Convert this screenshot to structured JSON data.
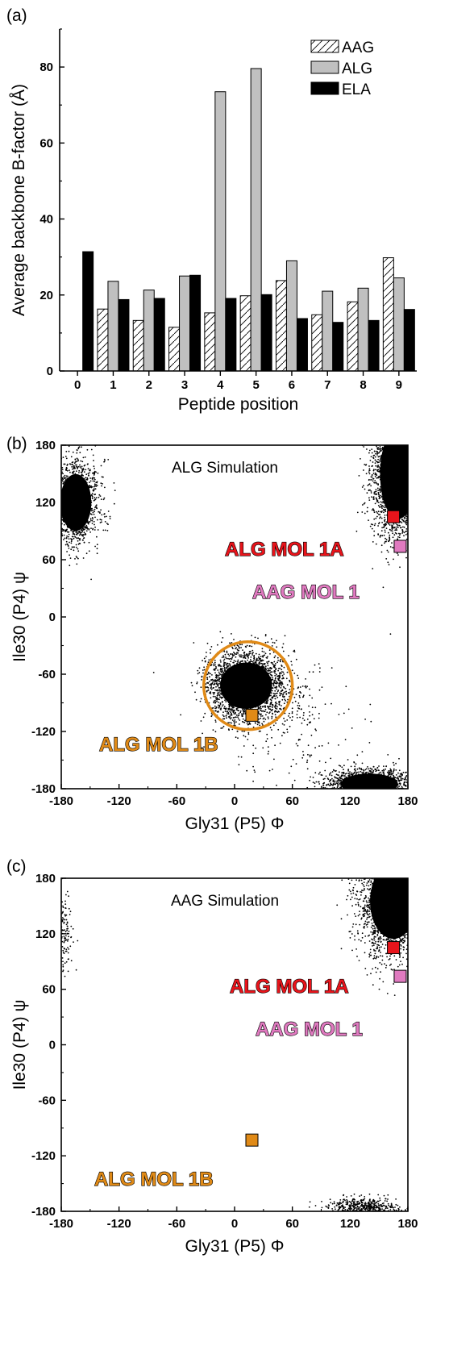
{
  "chart_data": [
    {
      "panel_label": "(a)",
      "type": "bar",
      "xlabel": "Peptide position",
      "ylabel": "Average backbone B-factor (Å)",
      "categories": [
        "0",
        "1",
        "2",
        "3",
        "4",
        "5",
        "6",
        "7",
        "8",
        "9"
      ],
      "ylim": [
        0,
        90
      ],
      "yticks": [
        "0",
        "20",
        "40",
        "60",
        "80"
      ],
      "legend": {
        "placement": "top-right"
      },
      "series": [
        {
          "name": "AAG",
          "color": "#ffffff",
          "pattern": "hatch",
          "values": [
            null,
            16.3,
            13.3,
            11.5,
            15.3,
            19.8,
            23.8,
            14.8,
            18.2,
            29.8
          ]
        },
        {
          "name": "ALG",
          "color": "#c0c0c0",
          "values": [
            null,
            23.6,
            21.3,
            25.0,
            73.5,
            79.6,
            29.0,
            21.0,
            21.8,
            24.5
          ]
        },
        {
          "name": "ELA",
          "color": "#000000",
          "values": [
            31.4,
            18.8,
            19.1,
            25.2,
            19.1,
            20.1,
            13.8,
            12.8,
            13.3,
            16.2
          ]
        }
      ]
    },
    {
      "panel_label": "(b)",
      "type": "scatter",
      "title": "ALG Simulation",
      "xlabel": "Gly31 (P5) Φ",
      "ylabel": "Ile30 (P4) ψ",
      "xlim": [
        -180,
        180
      ],
      "ylim": [
        -180,
        180
      ],
      "xticks": [
        "-180",
        "-120",
        "-60",
        "0",
        "60",
        "120",
        "180"
      ],
      "yticks": [
        "180",
        "120",
        "60",
        "0",
        "-60",
        "-120",
        "-180"
      ],
      "point_clusters": [
        {
          "center": [
            -165,
            120
          ],
          "spread": [
            12,
            22
          ],
          "density": "high"
        },
        {
          "center": [
            170,
            150
          ],
          "spread": [
            14,
            35
          ],
          "density": "very high"
        },
        {
          "center": [
            12,
            -72
          ],
          "spread": [
            20,
            18
          ],
          "density": "very high"
        },
        {
          "center": [
            140,
            -175
          ],
          "spread": [
            22,
            8
          ],
          "density": "high"
        },
        {
          "center": [
            55,
            -110
          ],
          "spread": [
            35,
            30
          ],
          "density": "sparse"
        }
      ],
      "markers": [
        {
          "label": "ALG MOL 1A",
          "x": 165,
          "y": 105,
          "color": "#e8141b"
        },
        {
          "label": "AAG MOL 1",
          "x": 172,
          "y": 74,
          "color": "#e07ac0"
        },
        {
          "label": "ALG MOL 1B",
          "x": 18,
          "y": -103,
          "color": "#e08a17"
        }
      ],
      "circle": {
        "center": [
          14,
          -72
        ],
        "radius": 46,
        "color": "#e08a17"
      }
    },
    {
      "panel_label": "(c)",
      "type": "scatter",
      "title": "AAG Simulation",
      "xlabel": "Gly31 (P5) Φ",
      "ylabel": "Ile30 (P4) ψ",
      "xlim": [
        -180,
        180
      ],
      "ylim": [
        -180,
        180
      ],
      "xticks": [
        "-180",
        "-120",
        "-60",
        "0",
        "60",
        "120",
        "180"
      ],
      "yticks": [
        "180",
        "120",
        "60",
        "0",
        "-60",
        "-120",
        "-180"
      ],
      "point_clusters": [
        {
          "center": [
            -177,
            120
          ],
          "spread": [
            4,
            20
          ],
          "density": "low"
        },
        {
          "center": [
            165,
            155
          ],
          "spread": [
            18,
            30
          ],
          "density": "very high"
        },
        {
          "center": [
            133,
            -177
          ],
          "spread": [
            18,
            6
          ],
          "density": "medium"
        }
      ],
      "markers": [
        {
          "label": "ALG MOL 1A",
          "x": 165,
          "y": 105,
          "color": "#e8141b"
        },
        {
          "label": "AAG MOL 1",
          "x": 172,
          "y": 74,
          "color": "#e07ac0"
        },
        {
          "label": "ALG MOL 1B",
          "x": 18,
          "y": -103,
          "color": "#e08a17"
        }
      ]
    }
  ]
}
